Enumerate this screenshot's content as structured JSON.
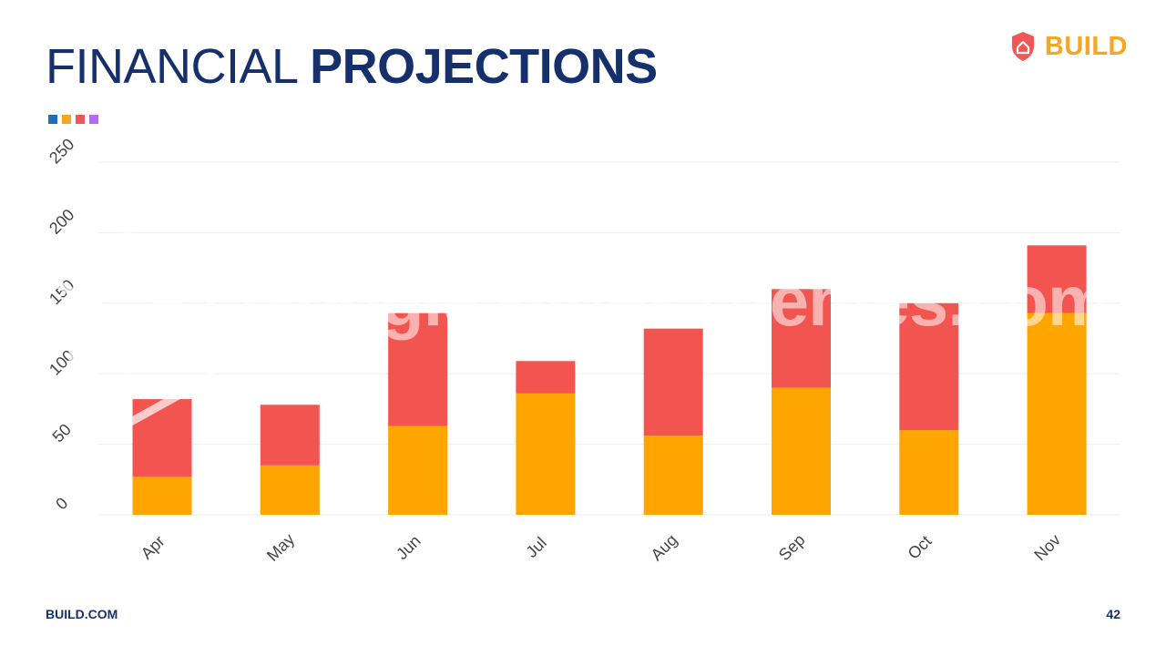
{
  "header": {
    "title_light": "FINANCIAL",
    "title_bold": "PROJECTIONS",
    "accent_dots": [
      "#1f6fb5",
      "#f5a623",
      "#f25656",
      "#b56cf2"
    ]
  },
  "logo": {
    "text": "BUILD",
    "icon": "shield-home-icon",
    "color": "#f5a623",
    "icon_color": "#f25656"
  },
  "watermark": {
    "text": "GoogleSlidesThemes.com",
    "icon": "cube-logo-icon"
  },
  "footer": {
    "left": "BUILD.COM",
    "right": "42"
  },
  "colors": {
    "series_bottom": "#ffa500",
    "series_top": "#f25550",
    "gridline": "#eeeeee",
    "axis_text": "#444444"
  },
  "chart_data": {
    "type": "bar",
    "stacked": true,
    "categories": [
      "Apr",
      "May",
      "Jun",
      "Jul",
      "Aug",
      "Sep",
      "Oct",
      "Nov"
    ],
    "series": [
      {
        "color": "#ffa500",
        "values": [
          27,
          35,
          63,
          86,
          56,
          90,
          60,
          143
        ]
      },
      {
        "color": "#f25550",
        "values": [
          55,
          43,
          80,
          23,
          76,
          70,
          90,
          48
        ]
      }
    ],
    "ylim": [
      0,
      250
    ],
    "yticks": [
      "0",
      "50",
      "100",
      "150",
      "200",
      "250"
    ],
    "xlabel": "",
    "ylabel": "",
    "grid": true,
    "legend": "none"
  }
}
